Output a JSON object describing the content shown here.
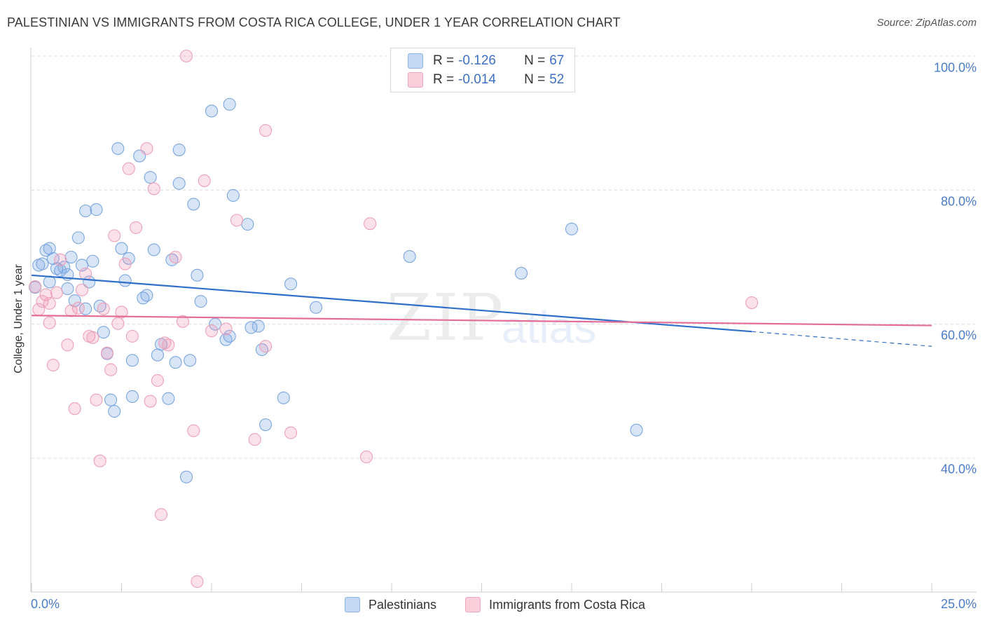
{
  "title": "PALESTINIAN VS IMMIGRANTS FROM COSTA RICA COLLEGE, UNDER 1 YEAR CORRELATION CHART",
  "source": "Source: ZipAtlas.com",
  "watermark": {
    "part1": "ZIP",
    "part2": "atlas"
  },
  "legend": {
    "r_label": "R =",
    "n_label": "N =",
    "series": [
      {
        "r": "-0.126",
        "n": "67",
        "color": "#a8c6ee"
      },
      {
        "r": "-0.014",
        "n": "52",
        "color": "#f4b8c9"
      }
    ]
  },
  "bottom_legend": [
    {
      "label": "Palestinians",
      "color": "#a8c6ee"
    },
    {
      "label": "Immigrants from Costa Rica",
      "color": "#f4b8c9"
    }
  ],
  "colors": {
    "blue_fill": "rgba(126,170,230,0.30)",
    "blue_stroke": "#7aa6e0",
    "blue_line": "#2f6fc9",
    "pink_fill": "rgba(240,150,180,0.28)",
    "pink_stroke": "#eda0b8",
    "pink_line": "#e46d96",
    "grid": "#dcdcdc",
    "axis_text": "#4a7cc9"
  },
  "chart_data": {
    "type": "scatter",
    "title": "PALESTINIAN VS IMMIGRANTS FROM COSTA RICA COLLEGE, UNDER 1 YEAR CORRELATION CHART",
    "xlabel": "",
    "ylabel": "College, Under 1 year",
    "xlim": [
      0,
      25
    ],
    "ylim": [
      20,
      102
    ],
    "x_tick_labels": [
      "0.0%",
      "25.0%"
    ],
    "y_ticks": [
      40,
      60,
      80,
      100
    ],
    "y_tick_labels": [
      "40.0%",
      "60.0%",
      "80.0%",
      "100.0%"
    ],
    "series": [
      {
        "name": "Palestinians",
        "r": -0.126,
        "n": 67,
        "trend": {
          "x0": 0,
          "y0": 67.3,
          "x1": 20,
          "y1": 58.9,
          "dash_x1": 25,
          "dash_y1": 56.7
        },
        "points": [
          [
            0.2,
            68.8
          ],
          [
            0.3,
            69.0
          ],
          [
            0.4,
            71.0
          ],
          [
            0.5,
            71.3
          ],
          [
            0.6,
            69.8
          ],
          [
            0.5,
            66.3
          ],
          [
            0.7,
            68.3
          ],
          [
            0.8,
            68.0
          ],
          [
            0.9,
            68.5
          ],
          [
            1.0,
            67.4
          ],
          [
            1.0,
            65.3
          ],
          [
            1.1,
            70.0
          ],
          [
            1.2,
            63.5
          ],
          [
            1.3,
            72.9
          ],
          [
            1.4,
            68.8
          ],
          [
            1.5,
            76.9
          ],
          [
            1.5,
            62.3
          ],
          [
            1.6,
            66.3
          ],
          [
            1.7,
            69.4
          ],
          [
            1.8,
            77.1
          ],
          [
            1.9,
            62.7
          ],
          [
            2.0,
            58.8
          ],
          [
            2.1,
            55.6
          ],
          [
            2.2,
            48.7
          ],
          [
            2.3,
            47.0
          ],
          [
            2.4,
            86.2
          ],
          [
            2.5,
            71.3
          ],
          [
            2.6,
            66.5
          ],
          [
            2.7,
            69.8
          ],
          [
            2.8,
            54.6
          ],
          [
            2.8,
            49.2
          ],
          [
            3.0,
            85.1
          ],
          [
            3.1,
            63.9
          ],
          [
            3.2,
            64.3
          ],
          [
            3.3,
            81.9
          ],
          [
            3.4,
            71.1
          ],
          [
            3.5,
            55.4
          ],
          [
            3.6,
            57.0
          ],
          [
            3.8,
            48.9
          ],
          [
            3.9,
            69.6
          ],
          [
            4.0,
            54.3
          ],
          [
            4.1,
            81.0
          ],
          [
            4.1,
            86.0
          ],
          [
            4.3,
            37.2
          ],
          [
            4.4,
            54.6
          ],
          [
            4.5,
            77.9
          ],
          [
            4.6,
            67.3
          ],
          [
            4.7,
            63.4
          ],
          [
            5.0,
            91.8
          ],
          [
            5.1,
            60.0
          ],
          [
            5.4,
            57.7
          ],
          [
            5.5,
            58.2
          ],
          [
            5.5,
            92.8
          ],
          [
            5.6,
            79.2
          ],
          [
            6.0,
            74.9
          ],
          [
            6.1,
            59.5
          ],
          [
            6.3,
            59.7
          ],
          [
            6.4,
            56.2
          ],
          [
            6.5,
            45.0
          ],
          [
            7.0,
            49.0
          ],
          [
            7.2,
            66.0
          ],
          [
            7.9,
            62.5
          ],
          [
            10.5,
            70.1
          ],
          [
            13.6,
            67.6
          ],
          [
            15.0,
            74.2
          ],
          [
            16.8,
            44.2
          ],
          [
            0.1,
            65.5
          ]
        ]
      },
      {
        "name": "Immigrants from Costa Rica",
        "r": -0.014,
        "n": 52,
        "trend": {
          "x0": 0,
          "y0": 61.3,
          "x1": 25,
          "y1": 59.8
        },
        "points": [
          [
            0.1,
            65.6
          ],
          [
            0.2,
            62.2
          ],
          [
            0.3,
            63.4
          ],
          [
            0.4,
            64.4
          ],
          [
            0.5,
            60.2
          ],
          [
            0.5,
            63.1
          ],
          [
            0.6,
            53.9
          ],
          [
            0.7,
            64.7
          ],
          [
            0.8,
            69.6
          ],
          [
            1.0,
            56.9
          ],
          [
            1.1,
            62.0
          ],
          [
            1.2,
            47.4
          ],
          [
            1.3,
            62.4
          ],
          [
            1.4,
            65.1
          ],
          [
            1.5,
            67.5
          ],
          [
            1.6,
            58.2
          ],
          [
            1.7,
            58.0
          ],
          [
            1.8,
            48.7
          ],
          [
            1.9,
            39.6
          ],
          [
            2.0,
            62.3
          ],
          [
            2.1,
            55.7
          ],
          [
            2.2,
            53.2
          ],
          [
            2.3,
            73.2
          ],
          [
            2.4,
            60.1
          ],
          [
            2.5,
            61.8
          ],
          [
            2.6,
            69.0
          ],
          [
            2.7,
            83.2
          ],
          [
            2.8,
            58.2
          ],
          [
            2.9,
            74.4
          ],
          [
            3.2,
            86.2
          ],
          [
            3.3,
            48.5
          ],
          [
            3.4,
            80.2
          ],
          [
            3.5,
            51.6
          ],
          [
            3.6,
            31.6
          ],
          [
            3.7,
            57.2
          ],
          [
            3.8,
            56.9
          ],
          [
            4.0,
            70.0
          ],
          [
            4.2,
            60.4
          ],
          [
            4.3,
            100.0
          ],
          [
            4.5,
            44.1
          ],
          [
            4.6,
            21.6
          ],
          [
            4.8,
            81.4
          ],
          [
            5.0,
            59.0
          ],
          [
            5.4,
            59.3
          ],
          [
            5.7,
            75.5
          ],
          [
            6.2,
            42.8
          ],
          [
            6.5,
            56.7
          ],
          [
            6.5,
            88.9
          ],
          [
            7.2,
            43.8
          ],
          [
            9.3,
            40.2
          ],
          [
            9.4,
            75.0
          ],
          [
            20.0,
            63.2
          ]
        ]
      }
    ]
  }
}
